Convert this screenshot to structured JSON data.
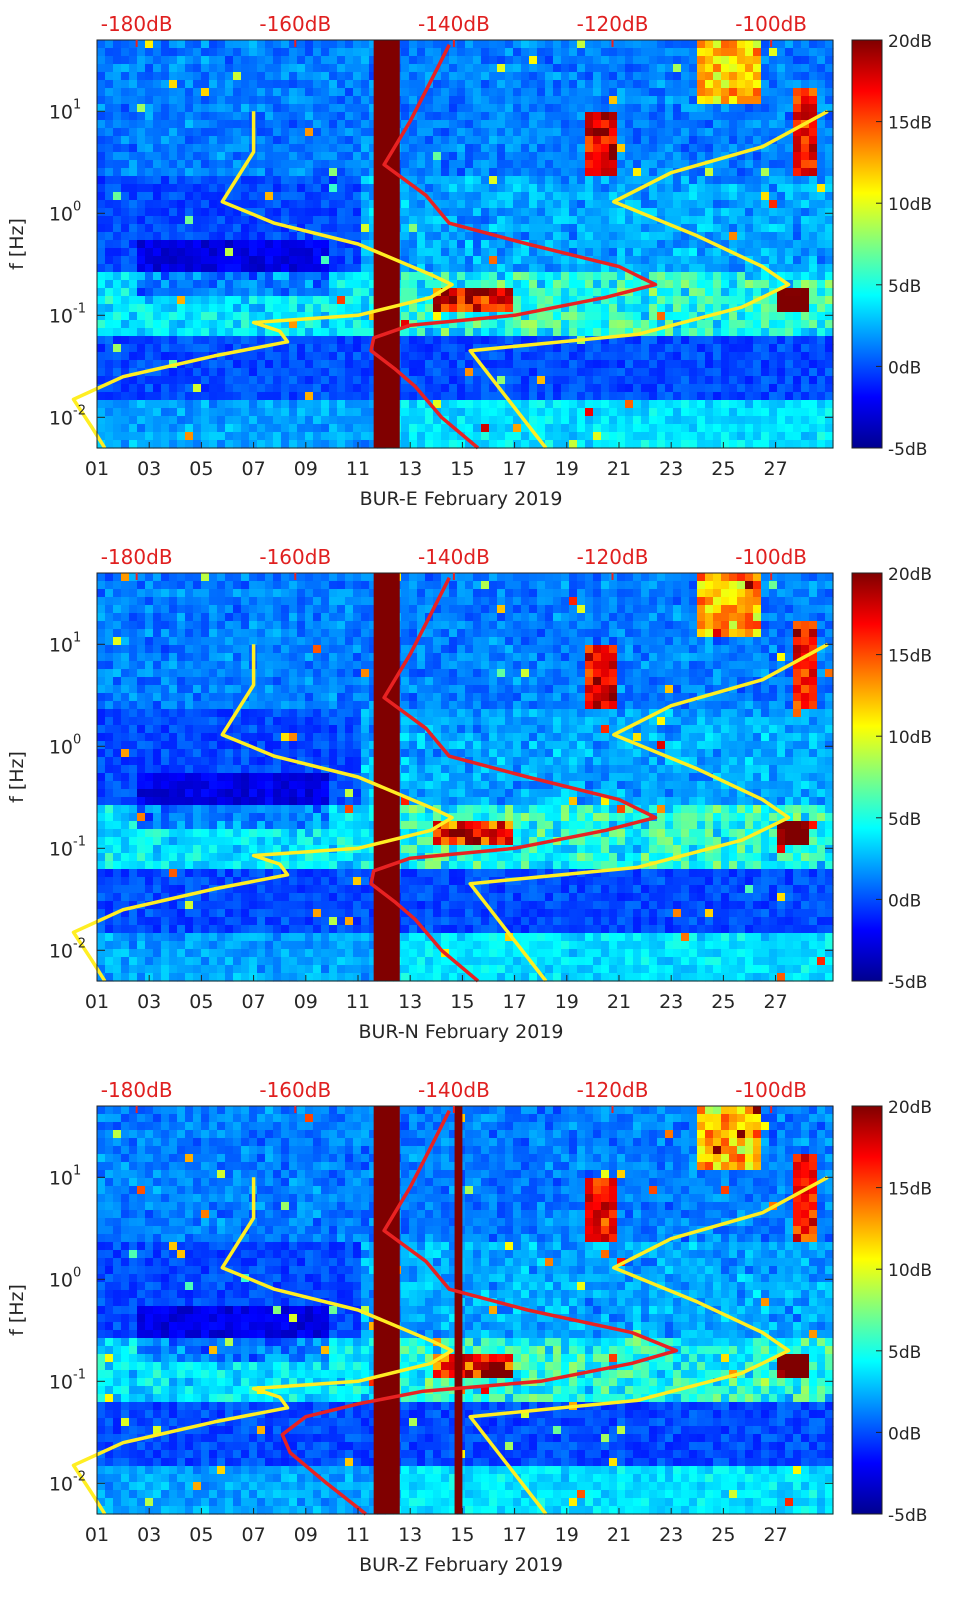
{
  "chart_data": [
    {
      "type": "heatmap",
      "title": "",
      "xlabel": "BUR-E February 2019",
      "ylabel": "f [Hz]",
      "x_tick_labels": [
        "01",
        "03",
        "05",
        "07",
        "09",
        "11",
        "13",
        "15",
        "17",
        "19",
        "21",
        "23",
        "25",
        "27"
      ],
      "x_ticks_day": [
        1,
        3,
        5,
        7,
        9,
        11,
        13,
        15,
        17,
        19,
        21,
        23,
        25,
        27
      ],
      "xlim_day": [
        1,
        29.2
      ],
      "y_scale": "log",
      "ylim_hz": [
        0.005,
        50
      ],
      "y_ticks": [
        {
          "value": 0.01,
          "base": "10",
          "exp": "-2"
        },
        {
          "value": 0.1,
          "base": "10",
          "exp": "-1"
        },
        {
          "value": 1,
          "base": "10",
          "exp": "0"
        },
        {
          "value": 10,
          "base": "10",
          "exp": "1"
        }
      ],
      "top_axis_labels": [
        "-180dB",
        "-160dB",
        "-140dB",
        "-120dB",
        "-100dB"
      ],
      "top_axis_db": [
        -180,
        -160,
        -140,
        -120,
        -100
      ],
      "colorbar": {
        "labels": [
          "20dB",
          "15dB",
          "10dB",
          "5dB",
          "0dB",
          "-5dB"
        ],
        "values": [
          20,
          15,
          10,
          5,
          0,
          -5
        ],
        "range": [
          -5,
          20
        ]
      },
      "data_gap_days": [
        [
          11.6,
          12.6
        ]
      ],
      "series": [
        {
          "curve": "yellow",
          "color": "#ffee22",
          "points": [
            [
              0.005,
              1.3
            ],
            [
              0.008,
              0.8
            ],
            [
              0.015,
              0.1
            ],
            [
              0.025,
              2.0
            ],
            [
              0.04,
              5.5
            ],
            [
              0.055,
              8.3
            ],
            [
              0.07,
              8.0
            ],
            [
              0.085,
              7.0
            ],
            [
              0.1,
              11.0
            ],
            [
              0.15,
              13.8
            ],
            [
              0.2,
              14.6
            ],
            [
              0.25,
              13.8
            ],
            [
              0.5,
              11.0
            ],
            [
              0.8,
              7.8
            ],
            [
              1.3,
              5.8
            ],
            [
              2.5,
              6.5
            ],
            [
              4.0,
              7.0
            ],
            [
              10.0,
              7.0
            ]
          ]
        },
        {
          "curve": "red",
          "color": "#e82222",
          "points": [
            [
              0.005,
              15.6
            ],
            [
              0.01,
              14.2
            ],
            [
              0.02,
              13.2
            ],
            [
              0.03,
              12.4
            ],
            [
              0.045,
              11.5
            ],
            [
              0.06,
              11.6
            ],
            [
              0.08,
              13.0
            ],
            [
              0.1,
              17.0
            ],
            [
              0.15,
              20.5
            ],
            [
              0.2,
              22.4
            ],
            [
              0.3,
              21.0
            ],
            [
              0.5,
              17.5
            ],
            [
              0.8,
              14.5
            ],
            [
              1.5,
              13.6
            ],
            [
              3.0,
              12.0
            ],
            [
              8.0,
              13.0
            ],
            [
              20.0,
              13.8
            ],
            [
              45.0,
              14.5
            ]
          ]
        },
        {
          "curve": "yellow-right",
          "color": "#ffee22",
          "points": [
            [
              0.005,
              18.2
            ],
            [
              0.045,
              15.3
            ],
            [
              0.065,
              21.7
            ],
            [
              0.12,
              25.7
            ],
            [
              0.15,
              26.5
            ],
            [
              0.2,
              27.5
            ],
            [
              0.3,
              26.5
            ],
            [
              0.6,
              24.0
            ],
            [
              1.3,
              20.8
            ],
            [
              2.5,
              23.0
            ],
            [
              4.5,
              26.5
            ],
            [
              10.0,
              29.0
            ]
          ]
        }
      ]
    },
    {
      "type": "heatmap",
      "title": "",
      "xlabel": "BUR-N February 2019",
      "ylabel": "f [Hz]",
      "x_tick_labels": [
        "01",
        "03",
        "05",
        "07",
        "09",
        "11",
        "13",
        "15",
        "17",
        "19",
        "21",
        "23",
        "25",
        "27"
      ],
      "x_ticks_day": [
        1,
        3,
        5,
        7,
        9,
        11,
        13,
        15,
        17,
        19,
        21,
        23,
        25,
        27
      ],
      "xlim_day": [
        1,
        29.2
      ],
      "y_scale": "log",
      "ylim_hz": [
        0.005,
        50
      ],
      "y_ticks": [
        {
          "value": 0.01,
          "base": "10",
          "exp": "-2"
        },
        {
          "value": 0.1,
          "base": "10",
          "exp": "-1"
        },
        {
          "value": 1,
          "base": "10",
          "exp": "0"
        },
        {
          "value": 10,
          "base": "10",
          "exp": "1"
        }
      ],
      "top_axis_labels": [
        "-180dB",
        "-160dB",
        "-140dB",
        "-120dB",
        "-100dB"
      ],
      "top_axis_db": [
        -180,
        -160,
        -140,
        -120,
        -100
      ],
      "colorbar": {
        "labels": [
          "20dB",
          "15dB",
          "10dB",
          "5dB",
          "0dB",
          "-5dB"
        ],
        "values": [
          20,
          15,
          10,
          5,
          0,
          -5
        ],
        "range": [
          -5,
          20
        ]
      },
      "data_gap_days": [
        [
          11.6,
          12.6
        ]
      ],
      "series": [
        {
          "curve": "yellow",
          "color": "#ffee22",
          "points": [
            [
              0.005,
              1.3
            ],
            [
              0.008,
              0.8
            ],
            [
              0.015,
              0.1
            ],
            [
              0.025,
              2.0
            ],
            [
              0.04,
              5.5
            ],
            [
              0.055,
              8.3
            ],
            [
              0.07,
              8.0
            ],
            [
              0.085,
              7.0
            ],
            [
              0.1,
              11.0
            ],
            [
              0.15,
              13.8
            ],
            [
              0.2,
              14.6
            ],
            [
              0.25,
              13.8
            ],
            [
              0.5,
              11.0
            ],
            [
              0.8,
              7.8
            ],
            [
              1.3,
              5.8
            ],
            [
              2.5,
              6.5
            ],
            [
              4.0,
              7.0
            ],
            [
              10.0,
              7.0
            ]
          ]
        },
        {
          "curve": "red",
          "color": "#e82222",
          "points": [
            [
              0.005,
              15.6
            ],
            [
              0.01,
              14.2
            ],
            [
              0.02,
              13.2
            ],
            [
              0.03,
              12.4
            ],
            [
              0.045,
              11.5
            ],
            [
              0.06,
              11.6
            ],
            [
              0.08,
              13.0
            ],
            [
              0.1,
              17.0
            ],
            [
              0.15,
              20.5
            ],
            [
              0.2,
              22.4
            ],
            [
              0.3,
              21.0
            ],
            [
              0.5,
              17.5
            ],
            [
              0.8,
              14.5
            ],
            [
              1.5,
              13.6
            ],
            [
              3.0,
              12.0
            ],
            [
              8.0,
              13.0
            ],
            [
              20.0,
              13.8
            ],
            [
              45.0,
              14.5
            ]
          ]
        },
        {
          "curve": "yellow-right",
          "color": "#ffee22",
          "points": [
            [
              0.005,
              18.2
            ],
            [
              0.045,
              15.3
            ],
            [
              0.065,
              21.7
            ],
            [
              0.12,
              25.7
            ],
            [
              0.15,
              26.5
            ],
            [
              0.2,
              27.5
            ],
            [
              0.3,
              26.5
            ],
            [
              0.6,
              24.0
            ],
            [
              1.3,
              20.8
            ],
            [
              2.5,
              23.0
            ],
            [
              4.5,
              26.5
            ],
            [
              10.0,
              29.0
            ]
          ]
        }
      ]
    },
    {
      "type": "heatmap",
      "title": "",
      "xlabel": "BUR-Z February 2019",
      "ylabel": "f [Hz]",
      "x_tick_labels": [
        "01",
        "03",
        "05",
        "07",
        "09",
        "11",
        "13",
        "15",
        "17",
        "19",
        "21",
        "23",
        "25",
        "27"
      ],
      "x_ticks_day": [
        1,
        3,
        5,
        7,
        9,
        11,
        13,
        15,
        17,
        19,
        21,
        23,
        25,
        27
      ],
      "xlim_day": [
        1,
        29.2
      ],
      "y_scale": "log",
      "ylim_hz": [
        0.005,
        50
      ],
      "y_ticks": [
        {
          "value": 0.01,
          "base": "10",
          "exp": "-2"
        },
        {
          "value": 0.1,
          "base": "10",
          "exp": "-1"
        },
        {
          "value": 1,
          "base": "10",
          "exp": "0"
        },
        {
          "value": 10,
          "base": "10",
          "exp": "1"
        }
      ],
      "top_axis_labels": [
        "-180dB",
        "-160dB",
        "-140dB",
        "-120dB",
        "-100dB"
      ],
      "top_axis_db": [
        -180,
        -160,
        -140,
        -120,
        -100
      ],
      "colorbar": {
        "labels": [
          "20dB",
          "15dB",
          "10dB",
          "5dB",
          "0dB",
          "-5dB"
        ],
        "values": [
          20,
          15,
          10,
          5,
          0,
          -5
        ],
        "range": [
          -5,
          20
        ]
      },
      "data_gap_days": [
        [
          11.6,
          12.6
        ],
        [
          14.7,
          15.0
        ]
      ],
      "series": [
        {
          "curve": "yellow",
          "color": "#ffee22",
          "points": [
            [
              0.005,
              1.3
            ],
            [
              0.008,
              0.8
            ],
            [
              0.015,
              0.1
            ],
            [
              0.025,
              2.0
            ],
            [
              0.04,
              5.5
            ],
            [
              0.055,
              8.3
            ],
            [
              0.07,
              8.0
            ],
            [
              0.085,
              7.0
            ],
            [
              0.1,
              11.0
            ],
            [
              0.15,
              13.8
            ],
            [
              0.2,
              14.6
            ],
            [
              0.25,
              13.8
            ],
            [
              0.5,
              11.0
            ],
            [
              0.8,
              7.8
            ],
            [
              1.3,
              5.8
            ],
            [
              2.5,
              6.5
            ],
            [
              4.0,
              7.0
            ],
            [
              10.0,
              7.0
            ]
          ]
        },
        {
          "curve": "red",
          "color": "#e82222",
          "points": [
            [
              0.005,
              11.3
            ],
            [
              0.01,
              9.8
            ],
            [
              0.02,
              8.4
            ],
            [
              0.03,
              8.1
            ],
            [
              0.045,
              9.0
            ],
            [
              0.06,
              11.0
            ],
            [
              0.08,
              13.5
            ],
            [
              0.1,
              18.0
            ],
            [
              0.15,
              21.5
            ],
            [
              0.2,
              23.2
            ],
            [
              0.3,
              21.5
            ],
            [
              0.5,
              17.5
            ],
            [
              0.8,
              14.5
            ],
            [
              1.5,
              13.6
            ],
            [
              3.0,
              12.0
            ],
            [
              8.0,
              13.0
            ],
            [
              20.0,
              13.8
            ],
            [
              45.0,
              14.5
            ]
          ]
        },
        {
          "curve": "yellow-right",
          "color": "#ffee22",
          "points": [
            [
              0.005,
              18.2
            ],
            [
              0.045,
              15.3
            ],
            [
              0.065,
              21.7
            ],
            [
              0.12,
              25.7
            ],
            [
              0.15,
              26.5
            ],
            [
              0.2,
              27.5
            ],
            [
              0.3,
              26.5
            ],
            [
              0.6,
              24.0
            ],
            [
              1.3,
              20.8
            ],
            [
              2.5,
              23.0
            ],
            [
              4.5,
              26.5
            ],
            [
              10.0,
              29.0
            ]
          ]
        }
      ]
    }
  ]
}
